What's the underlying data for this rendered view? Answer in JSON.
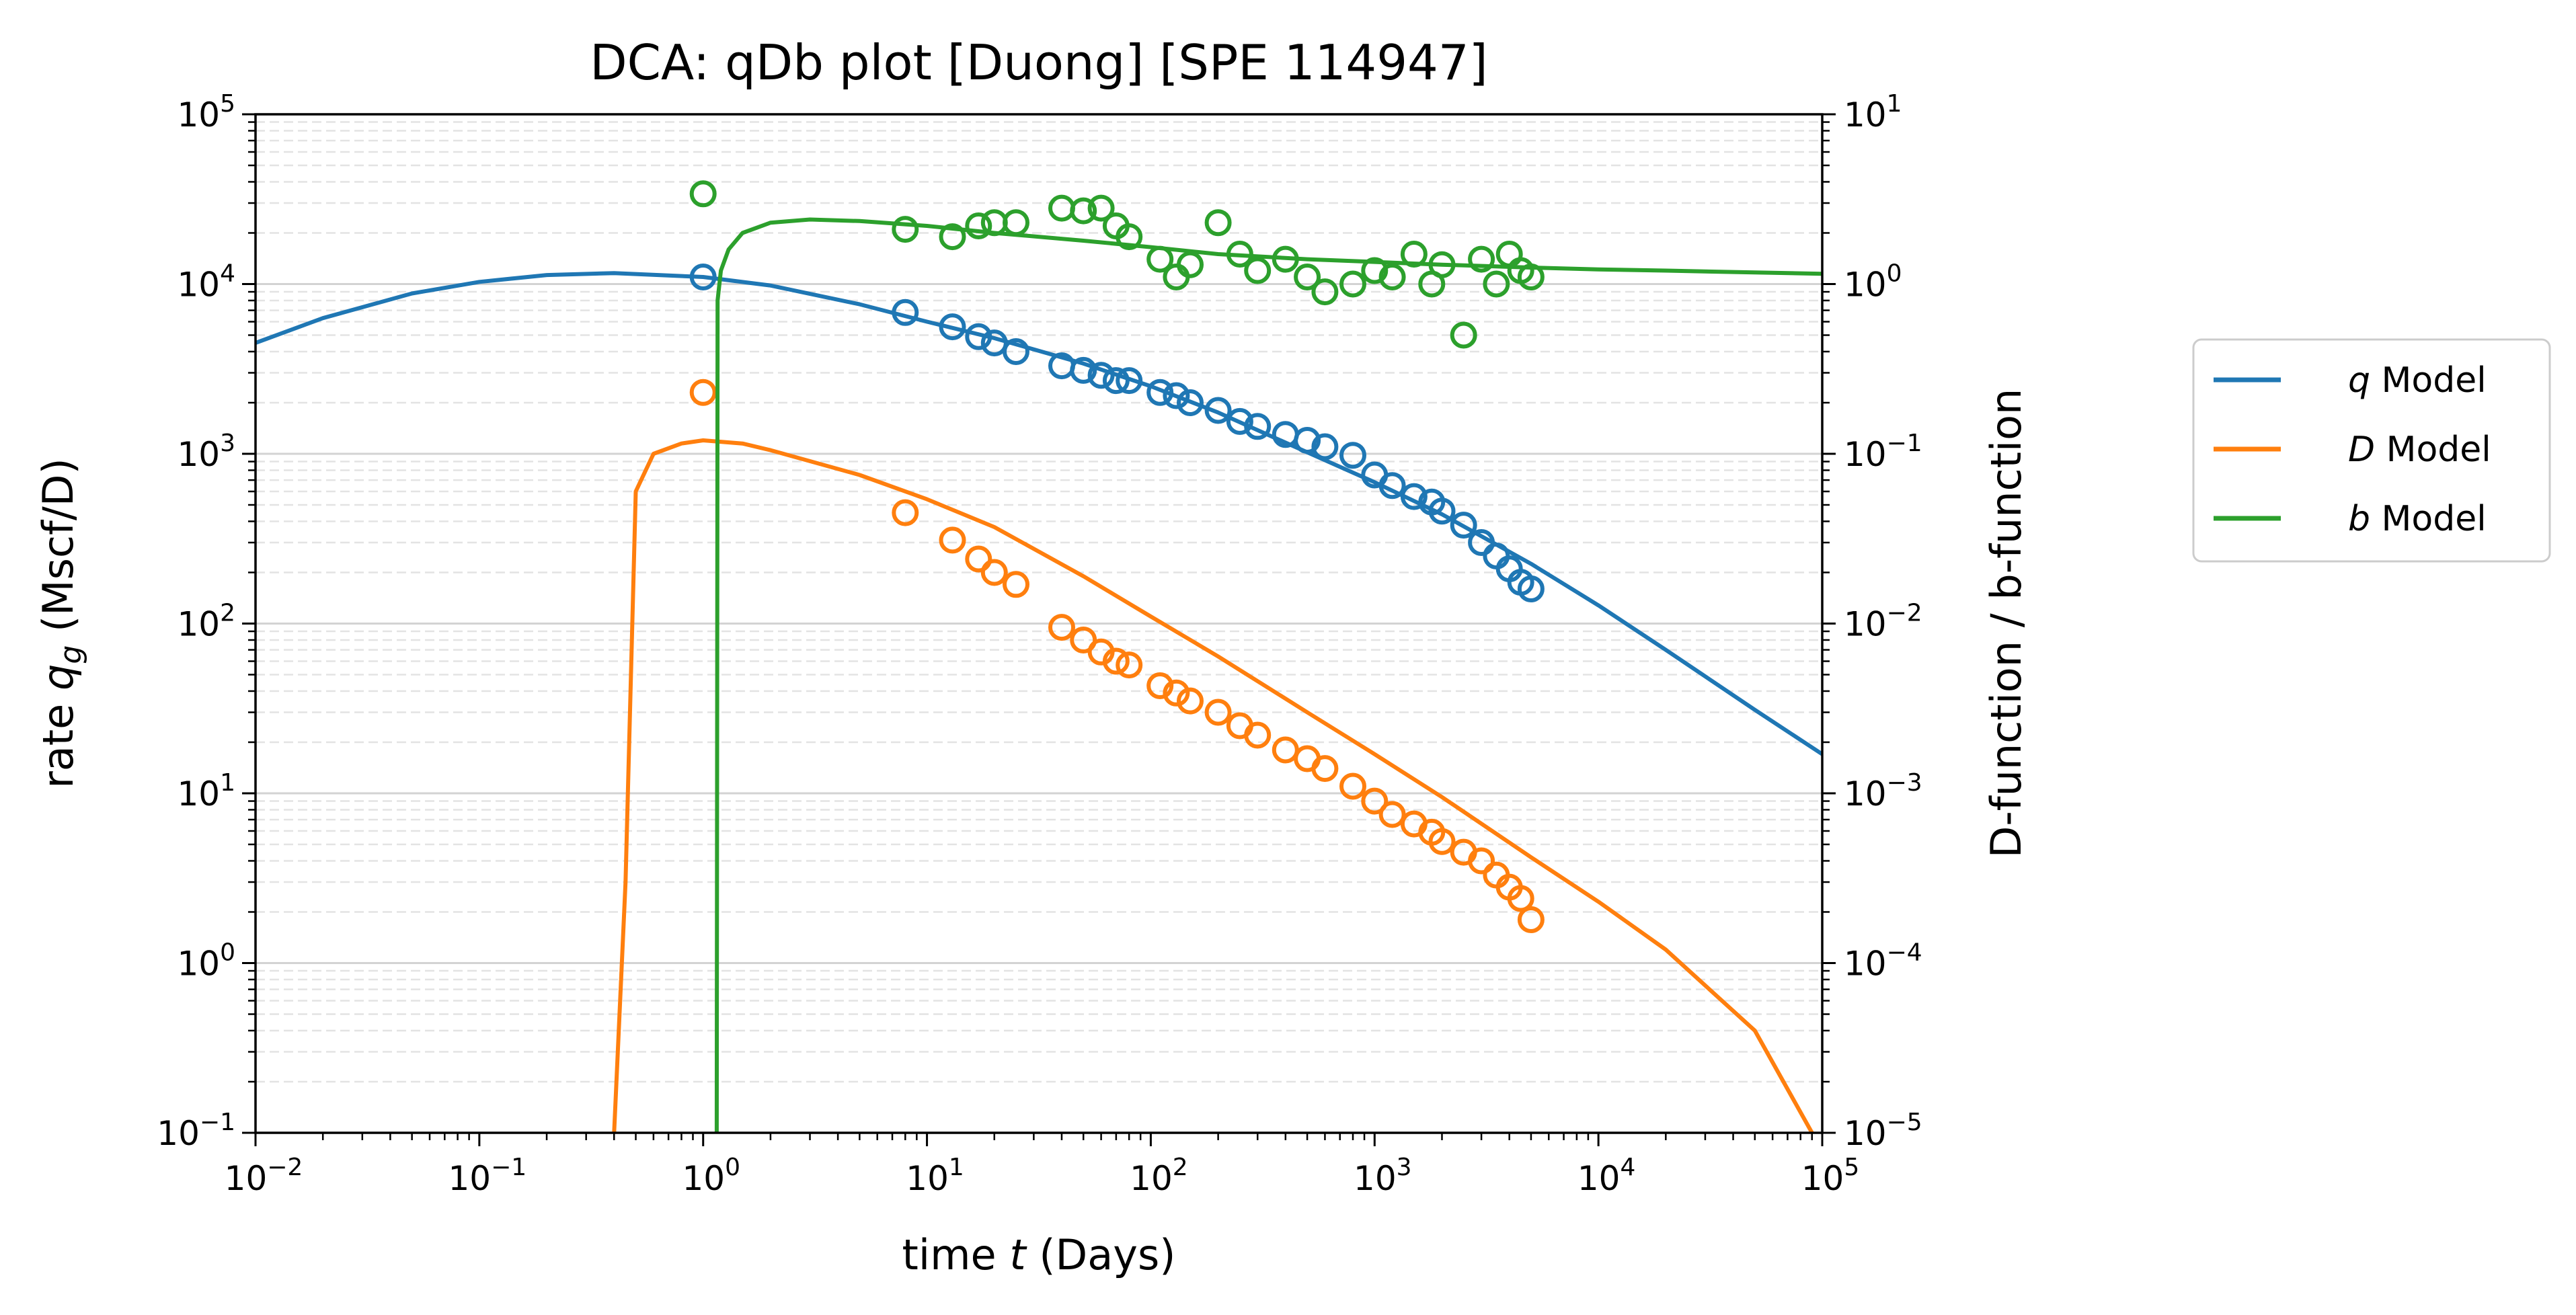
{
  "chart_data": {
    "type": "scatter",
    "title": "DCA: qDb plot  [Duong]  [SPE 114947]",
    "xlabel": "time t (Days)",
    "ylabel_left": "rate q_g (Mscf/D)",
    "ylabel_right": "D-function / b-function",
    "x_scale": "log",
    "y_scale": "log",
    "xlim": [
      0.01,
      100000
    ],
    "ylim_left": [
      0.1,
      100000
    ],
    "ylim_right": [
      1e-05,
      10
    ],
    "grid": "horizontal, major solid and minor dashed",
    "legend_position": "outside right",
    "x_ticks": [
      "10^-2",
      "10^-1",
      "10^0",
      "10^1",
      "10^2",
      "10^3",
      "10^4",
      "10^5"
    ],
    "y_left_ticks": [
      "10^-1",
      "10^0",
      "10^1",
      "10^2",
      "10^3",
      "10^4",
      "10^5"
    ],
    "y_right_ticks": [
      "10^-5",
      "10^-4",
      "10^-3",
      "10^-2",
      "10^-1",
      "10^0",
      "10^1"
    ],
    "series": [
      {
        "name": "q Model",
        "name_italic": "q",
        "name_rest": " Model",
        "axis": "left",
        "color": "#1f77b4",
        "model": {
          "t": [
            0.01,
            0.02,
            0.05,
            0.1,
            0.2,
            0.4,
            1,
            2,
            5,
            10,
            20,
            50,
            100,
            200,
            500,
            1000,
            2000,
            5000,
            10000,
            20000,
            50000,
            100000
          ],
          "q": [
            4500,
            6300,
            8800,
            10300,
            11300,
            11600,
            11000,
            9800,
            7600,
            6000,
            4800,
            3400,
            2500,
            1750,
            1020,
            680,
            440,
            225,
            128,
            70,
            31,
            17
          ]
        },
        "points": {
          "t": [
            1,
            8,
            13,
            17,
            20,
            25,
            40,
            50,
            60,
            70,
            80,
            110,
            130,
            150,
            200,
            250,
            300,
            400,
            500,
            600,
            800,
            1000,
            1200,
            1500,
            1800,
            2000,
            2500,
            3000,
            3500,
            4000,
            4500,
            5000
          ],
          "q": [
            11000,
            6800,
            5600,
            4900,
            4500,
            4000,
            3300,
            3100,
            2900,
            2700,
            2700,
            2300,
            2200,
            2000,
            1800,
            1550,
            1450,
            1300,
            1200,
            1100,
            980,
            750,
            650,
            560,
            520,
            460,
            380,
            300,
            250,
            210,
            175,
            160
          ]
        }
      },
      {
        "name": "D Model",
        "name_italic": "D",
        "name_rest": " Model",
        "axis": "right",
        "color": "#ff7f0e",
        "model": {
          "t": [
            0.4,
            0.45,
            0.5,
            0.6,
            0.8,
            1,
            1.5,
            2,
            5,
            10,
            20,
            50,
            100,
            200,
            500,
            1000,
            2000,
            5000,
            10000,
            20000,
            50000,
            90000
          ],
          "D": [
            1e-05,
            0.0003,
            0.06,
            0.1,
            0.115,
            0.12,
            0.115,
            0.105,
            0.075,
            0.054,
            0.037,
            0.019,
            0.011,
            0.0064,
            0.003,
            0.0017,
            0.00095,
            0.00042,
            0.00023,
            0.00012,
            4e-05,
            1e-05
          ]
        },
        "points": {
          "t": [
            1,
            8,
            13,
            17,
            20,
            25,
            40,
            50,
            60,
            70,
            80,
            110,
            130,
            150,
            200,
            250,
            300,
            400,
            500,
            600,
            800,
            1000,
            1200,
            1500,
            1800,
            2000,
            2500,
            3000,
            3500,
            4000,
            4500,
            5000
          ],
          "D": [
            0.23,
            0.045,
            0.031,
            0.024,
            0.02,
            0.017,
            0.0095,
            0.008,
            0.0068,
            0.006,
            0.0057,
            0.0043,
            0.0039,
            0.0035,
            0.003,
            0.0025,
            0.0022,
            0.0018,
            0.0016,
            0.0014,
            0.0011,
            0.0009,
            0.00075,
            0.00066,
            0.00059,
            0.00052,
            0.00045,
            0.0004,
            0.00033,
            0.00028,
            0.00024,
            0.00018
          ]
        }
      },
      {
        "name": "b Model",
        "name_italic": "b",
        "name_rest": " Model",
        "axis": "right",
        "color": "#2ca02c",
        "model": {
          "t": [
            1.15,
            1.16,
            1.2,
            1.3,
            1.5,
            2,
            3,
            5,
            10,
            20,
            50,
            100,
            200,
            500,
            1000,
            2000,
            5000,
            10000,
            20000,
            50000,
            100000
          ],
          "b": [
            1e-05,
            0.8,
            1.2,
            1.6,
            2.0,
            2.3,
            2.4,
            2.35,
            2.2,
            2.0,
            1.8,
            1.65,
            1.5,
            1.4,
            1.35,
            1.3,
            1.25,
            1.22,
            1.2,
            1.17,
            1.15
          ]
        },
        "points": {
          "t": [
            1,
            8,
            13,
            17,
            20,
            25,
            40,
            50,
            60,
            70,
            80,
            110,
            130,
            150,
            200,
            250,
            300,
            400,
            500,
            600,
            800,
            1000,
            1200,
            1500,
            1800,
            2000,
            2500,
            3000,
            3500,
            4000,
            4500,
            5000
          ],
          "b": [
            3.4,
            2.1,
            1.9,
            2.2,
            2.3,
            2.3,
            2.8,
            2.7,
            2.8,
            2.2,
            1.9,
            1.4,
            1.1,
            1.3,
            2.3,
            1.5,
            1.2,
            1.4,
            1.1,
            0.9,
            1.0,
            1.2,
            1.1,
            1.5,
            1.0,
            1.3,
            0.5,
            1.4,
            1.0,
            1.5,
            1.2,
            1.1
          ]
        }
      }
    ]
  }
}
